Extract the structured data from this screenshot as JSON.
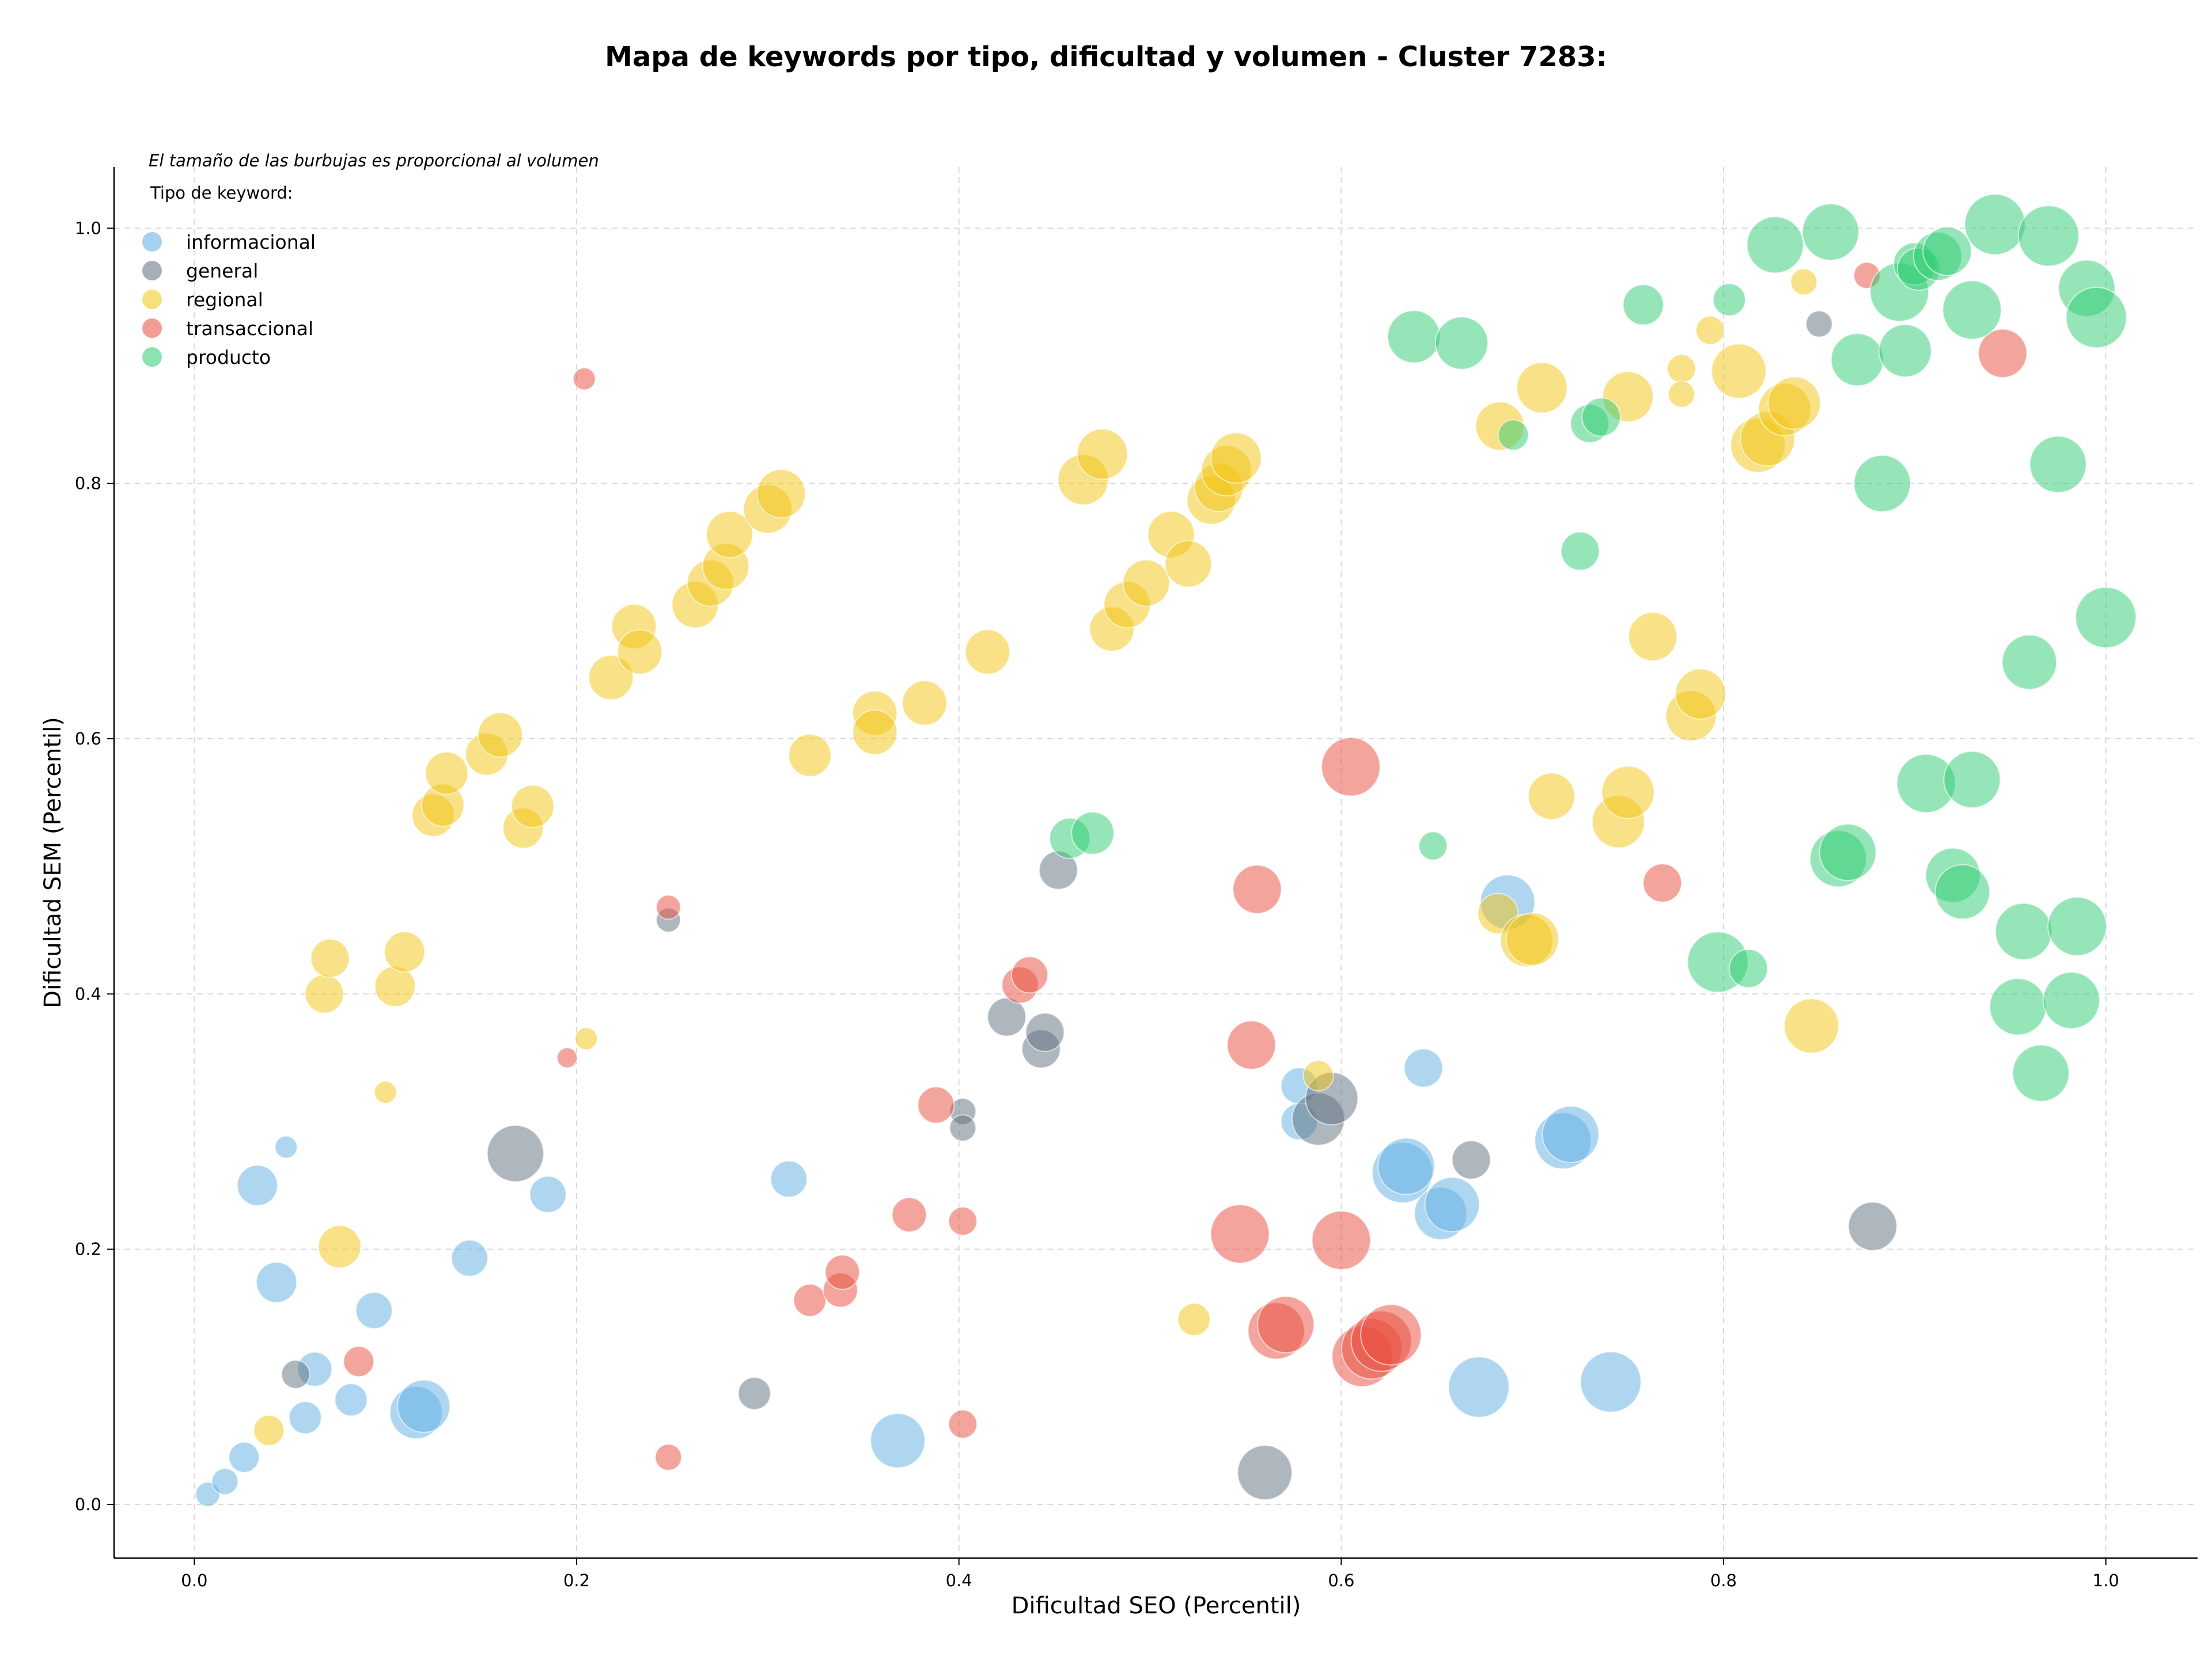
{
  "chart_data": {
    "type": "scatter",
    "title": "Mapa de keywords por tipo, dificultad y volumen - Cluster 7283:",
    "xlabel": "Dificultad SEO (Percentil)",
    "ylabel": "Dificultad SEM (Percentil)",
    "xlim": [
      -0.042,
      1.048
    ],
    "ylim": [
      -0.042,
      1.048
    ],
    "xticks": [
      0.0,
      0.2,
      0.4,
      0.6,
      0.8,
      1.0
    ],
    "yticks": [
      0.0,
      0.2,
      0.4,
      0.6,
      0.8,
      1.0
    ],
    "xtick_labels": [
      "0.0",
      "0.2",
      "0.4",
      "0.6",
      "0.8",
      "1.0"
    ],
    "ytick_labels": [
      "0.0",
      "0.2",
      "0.4",
      "0.6",
      "0.8",
      "1.0"
    ],
    "grid": true,
    "note": "El tamaño de las burbujas es proporcional al volumen",
    "legend_title": "Tipo de keyword:",
    "legend_position": "top-left",
    "series": [
      {
        "name": "informacional",
        "color": "#5DADE2",
        "points": [
          [
            0.007,
            0.008,
            12
          ],
          [
            0.016,
            0.018,
            13
          ],
          [
            0.026,
            0.037,
            15
          ],
          [
            0.033,
            0.25,
            20
          ],
          [
            0.043,
            0.174,
            20
          ],
          [
            0.048,
            0.28,
            11
          ],
          [
            0.058,
            0.068,
            16
          ],
          [
            0.063,
            0.106,
            17
          ],
          [
            0.082,
            0.082,
            16
          ],
          [
            0.094,
            0.152,
            18
          ],
          [
            0.116,
            0.072,
            26
          ],
          [
            0.12,
            0.077,
            26
          ],
          [
            0.144,
            0.193,
            18
          ],
          [
            0.185,
            0.243,
            18
          ],
          [
            0.311,
            0.255,
            18
          ],
          [
            0.368,
            0.05,
            27
          ],
          [
            0.578,
            0.328,
            18
          ],
          [
            0.578,
            0.3,
            18
          ],
          [
            0.632,
            0.26,
            30
          ],
          [
            0.634,
            0.265,
            28
          ],
          [
            0.643,
            0.342,
            19
          ],
          [
            0.652,
            0.228,
            26
          ],
          [
            0.658,
            0.235,
            27
          ],
          [
            0.672,
            0.092,
            30
          ],
          [
            0.687,
            0.472,
            27
          ],
          [
            0.716,
            0.285,
            28
          ],
          [
            0.72,
            0.29,
            28
          ],
          [
            0.741,
            0.096,
            30
          ]
        ]
      },
      {
        "name": "general",
        "color": "#5D6D7E",
        "points": [
          [
            0.053,
            0.102,
            14
          ],
          [
            0.168,
            0.275,
            28
          ],
          [
            0.248,
            0.458,
            12
          ],
          [
            0.293,
            0.087,
            16
          ],
          [
            0.402,
            0.308,
            13
          ],
          [
            0.402,
            0.295,
            13
          ],
          [
            0.425,
            0.382,
            19
          ],
          [
            0.443,
            0.357,
            19
          ],
          [
            0.445,
            0.37,
            19
          ],
          [
            0.452,
            0.497,
            19
          ],
          [
            0.56,
            0.025,
            27
          ],
          [
            0.588,
            0.302,
            26
          ],
          [
            0.595,
            0.318,
            26
          ],
          [
            0.668,
            0.27,
            19
          ],
          [
            0.85,
            0.925,
            13
          ],
          [
            0.878,
            0.218,
            24
          ]
        ]
      },
      {
        "name": "regional",
        "color": "#F1C40F",
        "points": [
          [
            0.039,
            0.058,
            15
          ],
          [
            0.068,
            0.4,
            19
          ],
          [
            0.071,
            0.428,
            19
          ],
          [
            0.076,
            0.202,
            21
          ],
          [
            0.1,
            0.323,
            11
          ],
          [
            0.105,
            0.406,
            20
          ],
          [
            0.11,
            0.433,
            20
          ],
          [
            0.125,
            0.54,
            21
          ],
          [
            0.13,
            0.548,
            21
          ],
          [
            0.132,
            0.573,
            21
          ],
          [
            0.153,
            0.588,
            21
          ],
          [
            0.16,
            0.603,
            22
          ],
          [
            0.172,
            0.53,
            20
          ],
          [
            0.177,
            0.547,
            21
          ],
          [
            0.205,
            0.365,
            11
          ],
          [
            0.218,
            0.648,
            22
          ],
          [
            0.23,
            0.688,
            22
          ],
          [
            0.233,
            0.668,
            22
          ],
          [
            0.262,
            0.705,
            23
          ],
          [
            0.27,
            0.722,
            23
          ],
          [
            0.278,
            0.735,
            23
          ],
          [
            0.28,
            0.76,
            23
          ],
          [
            0.3,
            0.78,
            24
          ],
          [
            0.307,
            0.792,
            24
          ],
          [
            0.322,
            0.587,
            21
          ],
          [
            0.356,
            0.62,
            22
          ],
          [
            0.356,
            0.605,
            22
          ],
          [
            0.382,
            0.628,
            22
          ],
          [
            0.415,
            0.668,
            22
          ],
          [
            0.465,
            0.803,
            25
          ],
          [
            0.475,
            0.823,
            25
          ],
          [
            0.48,
            0.686,
            22
          ],
          [
            0.488,
            0.705,
            23
          ],
          [
            0.498,
            0.722,
            23
          ],
          [
            0.511,
            0.76,
            23
          ],
          [
            0.52,
            0.737,
            23
          ],
          [
            0.523,
            0.145,
            16
          ],
          [
            0.532,
            0.787,
            24
          ],
          [
            0.536,
            0.797,
            24
          ],
          [
            0.54,
            0.81,
            25
          ],
          [
            0.545,
            0.82,
            25
          ],
          [
            0.588,
            0.336,
            15
          ],
          [
            0.682,
            0.463,
            20
          ],
          [
            0.683,
            0.845,
            24
          ],
          [
            0.697,
            0.442,
            26
          ],
          [
            0.7,
            0.443,
            26
          ],
          [
            0.705,
            0.875,
            25
          ],
          [
            0.71,
            0.555,
            23
          ],
          [
            0.745,
            0.535,
            26
          ],
          [
            0.75,
            0.558,
            26
          ],
          [
            0.75,
            0.868,
            25
          ],
          [
            0.763,
            0.68,
            24
          ],
          [
            0.778,
            0.89,
            14
          ],
          [
            0.778,
            0.87,
            13
          ],
          [
            0.783,
            0.618,
            25
          ],
          [
            0.788,
            0.635,
            25
          ],
          [
            0.793,
            0.92,
            14
          ],
          [
            0.808,
            0.888,
            27
          ],
          [
            0.818,
            0.83,
            27
          ],
          [
            0.823,
            0.835,
            27
          ],
          [
            0.832,
            0.858,
            26
          ],
          [
            0.837,
            0.863,
            26
          ],
          [
            0.842,
            0.958,
            13
          ],
          [
            0.846,
            0.375,
            27
          ]
        ]
      },
      {
        "name": "transaccional",
        "color": "#E74C3C",
        "points": [
          [
            0.086,
            0.112,
            15
          ],
          [
            0.195,
            0.35,
            10
          ],
          [
            0.204,
            0.882,
            11
          ],
          [
            0.248,
            0.468,
            12
          ],
          [
            0.248,
            0.037,
            13
          ],
          [
            0.322,
            0.16,
            16
          ],
          [
            0.338,
            0.168,
            17
          ],
          [
            0.339,
            0.182,
            17
          ],
          [
            0.374,
            0.227,
            17
          ],
          [
            0.388,
            0.313,
            18
          ],
          [
            0.402,
            0.222,
            14
          ],
          [
            0.402,
            0.063,
            14
          ],
          [
            0.432,
            0.407,
            18
          ],
          [
            0.437,
            0.415,
            18
          ],
          [
            0.553,
            0.36,
            24
          ],
          [
            0.556,
            0.482,
            24
          ],
          [
            0.547,
            0.212,
            29
          ],
          [
            0.566,
            0.136,
            28
          ],
          [
            0.571,
            0.141,
            28
          ],
          [
            0.6,
            0.207,
            29
          ],
          [
            0.605,
            0.578,
            29
          ],
          [
            0.611,
            0.116,
            30
          ],
          [
            0.616,
            0.122,
            30
          ],
          [
            0.621,
            0.128,
            30
          ],
          [
            0.626,
            0.133,
            30
          ],
          [
            0.768,
            0.487,
            19
          ],
          [
            0.875,
            0.963,
            13
          ],
          [
            0.946,
            0.902,
            24
          ]
        ]
      },
      {
        "name": "producto",
        "color": "#2ECC71",
        "points": [
          [
            0.458,
            0.522,
            20
          ],
          [
            0.47,
            0.526,
            21
          ],
          [
            0.638,
            0.915,
            26
          ],
          [
            0.648,
            0.516,
            14
          ],
          [
            0.663,
            0.91,
            26
          ],
          [
            0.69,
            0.838,
            15
          ],
          [
            0.725,
            0.747,
            19
          ],
          [
            0.73,
            0.847,
            19
          ],
          [
            0.736,
            0.852,
            19
          ],
          [
            0.758,
            0.94,
            20
          ],
          [
            0.797,
            0.425,
            30
          ],
          [
            0.803,
            0.944,
            16
          ],
          [
            0.813,
            0.42,
            19
          ],
          [
            0.827,
            0.987,
            28
          ],
          [
            0.856,
            0.997,
            28
          ],
          [
            0.86,
            0.506,
            28
          ],
          [
            0.865,
            0.511,
            28
          ],
          [
            0.87,
            0.897,
            26
          ],
          [
            0.883,
            0.8,
            28
          ],
          [
            0.892,
            0.95,
            29
          ],
          [
            0.895,
            0.904,
            26
          ],
          [
            0.9,
            0.972,
            21
          ],
          [
            0.902,
            0.968,
            21
          ],
          [
            0.906,
            0.565,
            29
          ],
          [
            0.912,
            0.978,
            24
          ],
          [
            0.917,
            0.982,
            24
          ],
          [
            0.92,
            0.493,
            27
          ],
          [
            0.925,
            0.48,
            27
          ],
          [
            0.93,
            0.568,
            28
          ],
          [
            0.93,
            0.936,
            29
          ],
          [
            0.942,
            1.003,
            30
          ],
          [
            0.954,
            0.39,
            28
          ],
          [
            0.957,
            0.449,
            28
          ],
          [
            0.96,
            0.66,
            27
          ],
          [
            0.966,
            0.338,
            28
          ],
          [
            0.97,
            0.994,
            30
          ],
          [
            0.975,
            0.815,
            28
          ],
          [
            0.982,
            0.395,
            28
          ],
          [
            0.985,
            0.453,
            29
          ],
          [
            0.99,
            0.953,
            28
          ],
          [
            0.995,
            0.93,
            30
          ],
          [
            1.0,
            0.695,
            30
          ]
        ]
      }
    ]
  }
}
